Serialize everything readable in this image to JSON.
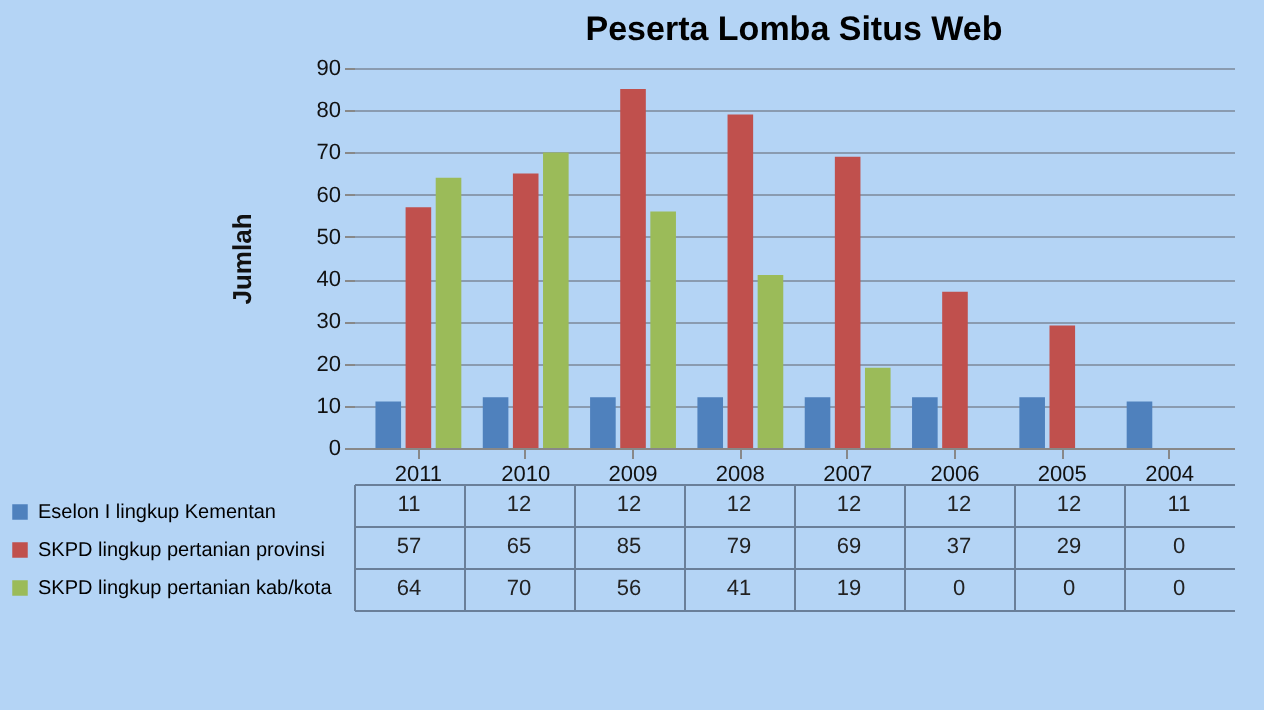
{
  "chart_data": {
    "type": "bar",
    "title": "Peserta  Lomba Situs Web",
    "ylabel": "Jumlah",
    "categories": [
      "2011",
      "2010",
      "2009",
      "2008",
      "2007",
      "2006",
      "2005",
      "2004"
    ],
    "series": [
      {
        "name": "Eselon I lingkup Kementan",
        "color": "#4f81bd",
        "values": [
          11,
          12,
          12,
          12,
          12,
          12,
          12,
          11
        ]
      },
      {
        "name": "SKPD lingkup pertanian provinsi",
        "color": "#c0504d",
        "values": [
          57,
          65,
          85,
          79,
          69,
          37,
          29,
          0
        ]
      },
      {
        "name": "SKPD lingkup pertanian kab/kota",
        "color": "#9bbb59",
        "values": [
          64,
          70,
          56,
          41,
          19,
          0,
          0,
          0
        ]
      }
    ],
    "ylim": [
      0,
      90
    ],
    "yticks": [
      0,
      10,
      20,
      30,
      40,
      50,
      60,
      70,
      80,
      90
    ],
    "grid": true,
    "legend": "bottom left",
    "data_labels": true
  }
}
